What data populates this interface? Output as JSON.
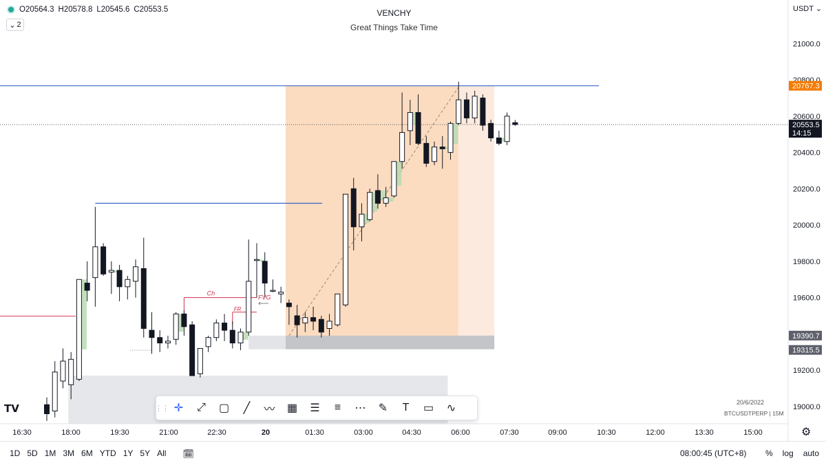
{
  "ohlc": {
    "open": "O20564.3",
    "high": "H20578.8",
    "low": "L20545.6",
    "close": "C20553.5"
  },
  "collapse_label": "2",
  "title": "VENCHY",
  "subtitle": "Great Things Take Time",
  "currency": "USDT",
  "logo_text": "TV",
  "info_date": "20/6/2022",
  "info_symbol": "BTCUSDTPERP | 15M",
  "clock": "08:00:45 (UTC+8)",
  "ranges": [
    "1D",
    "5D",
    "1M",
    "3M",
    "6M",
    "YTD",
    "1Y",
    "5Y",
    "All"
  ],
  "options": {
    "percent": "%",
    "log": "log",
    "auto": "auto"
  },
  "toolbar": [
    "crosshair-icon",
    "trend-line-icon",
    "rectangle-icon",
    "line-icon",
    "path-icon",
    "grid-icon",
    "lines-icon",
    "parallel-channel-icon",
    "channel-icon",
    "brush-icon",
    "text-icon",
    "note-icon",
    "curve-icon"
  ],
  "toolbar_glyphs": [
    "✛",
    "⤢",
    "▢",
    "╱",
    "〰",
    "▦",
    "☰",
    "≡",
    "⋯",
    "✎",
    "T",
    "▭",
    "∿"
  ],
  "colors": {
    "accent": "#2962ff",
    "orange_box": "#fcdcc0",
    "blue_level": "#3a63c7",
    "red_level": "#e0506e"
  },
  "chart_data": {
    "type": "candlestick",
    "title": "VENCHY",
    "subtitle": "Great Things Take Time",
    "y_axis": {
      "ticks": [
        19000,
        19200,
        19400,
        19600,
        19800,
        20000,
        20200,
        20400,
        20600,
        20800,
        21000
      ],
      "labels": [
        "19000.0",
        "19200.0",
        "19400.0",
        "19600.0",
        "19800.0",
        "20000.0",
        "20200.0",
        "20400.0",
        "20600.0",
        "20800.0",
        "21000.0"
      ],
      "range": [
        18905,
        21240
      ]
    },
    "x_axis": {
      "labels": [
        "16:30",
        "18:00",
        "19:30",
        "21:00",
        "22:30",
        "20",
        "01:30",
        "03:00",
        "04:30",
        "06:00",
        "07:30",
        "09:00",
        "10:30",
        "12:00",
        "13:30",
        "15:00"
      ]
    },
    "candles": [
      {
        "o": 19010,
        "h": 19050,
        "l": 18920,
        "c": 18960
      },
      {
        "o": 18975,
        "h": 19250,
        "l": 18940,
        "c": 19190
      },
      {
        "o": 19140,
        "h": 19320,
        "l": 19100,
        "c": 19250
      },
      {
        "o": 19120,
        "h": 19300,
        "l": 19040,
        "c": 19260
      },
      {
        "o": 19150,
        "h": 19700,
        "l": 19140,
        "c": 19700
      },
      {
        "o": 19680,
        "h": 19800,
        "l": 19580,
        "c": 19640
      },
      {
        "o": 19710,
        "h": 20100,
        "l": 19550,
        "c": 19880
      },
      {
        "o": 19880,
        "h": 19900,
        "l": 19720,
        "c": 19730
      },
      {
        "o": 19740,
        "h": 19800,
        "l": 19620,
        "c": 19750
      },
      {
        "o": 19750,
        "h": 19780,
        "l": 19580,
        "c": 19660
      },
      {
        "o": 19660,
        "h": 19720,
        "l": 19590,
        "c": 19700
      },
      {
        "o": 19690,
        "h": 19810,
        "l": 19600,
        "c": 19770
      },
      {
        "o": 19760,
        "h": 19930,
        "l": 19380,
        "c": 19430
      },
      {
        "o": 19420,
        "h": 19520,
        "l": 19290,
        "c": 19380
      },
      {
        "o": 19380,
        "h": 19420,
        "l": 19300,
        "c": 19350
      },
      {
        "o": 19350,
        "h": 19390,
        "l": 19320,
        "c": 19360
      },
      {
        "o": 19370,
        "h": 19520,
        "l": 19340,
        "c": 19510
      },
      {
        "o": 19510,
        "h": 19530,
        "l": 19390,
        "c": 19440
      },
      {
        "o": 19450,
        "h": 19470,
        "l": 19170,
        "c": 19170
      },
      {
        "o": 19180,
        "h": 19320,
        "l": 19160,
        "c": 19320
      },
      {
        "o": 19330,
        "h": 19390,
        "l": 19300,
        "c": 19380
      },
      {
        "o": 19380,
        "h": 19480,
        "l": 19360,
        "c": 19460
      },
      {
        "o": 19460,
        "h": 19510,
        "l": 19360,
        "c": 19420
      },
      {
        "o": 19420,
        "h": 19470,
        "l": 19320,
        "c": 19350
      },
      {
        "o": 19350,
        "h": 19430,
        "l": 19310,
        "c": 19410
      },
      {
        "o": 19410,
        "h": 19920,
        "l": 19390,
        "c": 19690
      },
      {
        "o": 19810,
        "h": 19900,
        "l": 19600,
        "c": 19810
      },
      {
        "o": 19800,
        "h": 19850,
        "l": 19600,
        "c": 19680
      },
      {
        "o": 19640,
        "h": 19700,
        "l": 19630,
        "c": 19640
      },
      {
        "o": 19620,
        "h": 19660,
        "l": 19570,
        "c": 19630
      },
      {
        "o": 19570,
        "h": 19590,
        "l": 19450,
        "c": 19550
      },
      {
        "o": 19500,
        "h": 19560,
        "l": 19380,
        "c": 19450
      },
      {
        "o": 19460,
        "h": 19520,
        "l": 19410,
        "c": 19490
      },
      {
        "o": 19490,
        "h": 19550,
        "l": 19420,
        "c": 19470
      },
      {
        "o": 19480,
        "h": 19500,
        "l": 19380,
        "c": 19410
      },
      {
        "o": 19430,
        "h": 19510,
        "l": 19390,
        "c": 19470
      },
      {
        "o": 19450,
        "h": 19620,
        "l": 19440,
        "c": 19620
      },
      {
        "o": 19560,
        "h": 20170,
        "l": 19550,
        "c": 20170
      },
      {
        "o": 20200,
        "h": 20260,
        "l": 19860,
        "c": 19990
      },
      {
        "o": 19990,
        "h": 20120,
        "l": 19910,
        "c": 20060
      },
      {
        "o": 20030,
        "h": 20200,
        "l": 20020,
        "c": 20180
      },
      {
        "o": 20190,
        "h": 20280,
        "l": 20090,
        "c": 20120
      },
      {
        "o": 20120,
        "h": 20210,
        "l": 20100,
        "c": 20150
      },
      {
        "o": 20160,
        "h": 20350,
        "l": 20150,
        "c": 20350
      },
      {
        "o": 20350,
        "h": 20730,
        "l": 20310,
        "c": 20510
      },
      {
        "o": 20520,
        "h": 20690,
        "l": 20440,
        "c": 20620
      },
      {
        "o": 20620,
        "h": 20720,
        "l": 20440,
        "c": 20450
      },
      {
        "o": 20450,
        "h": 20490,
        "l": 20320,
        "c": 20340
      },
      {
        "o": 20350,
        "h": 20460,
        "l": 20330,
        "c": 20430
      },
      {
        "o": 20430,
        "h": 20490,
        "l": 20310,
        "c": 20420
      },
      {
        "o": 20400,
        "h": 20570,
        "l": 20360,
        "c": 20560
      },
      {
        "o": 20560,
        "h": 20790,
        "l": 20550,
        "c": 20690
      },
      {
        "o": 20690,
        "h": 20730,
        "l": 20560,
        "c": 20590
      },
      {
        "o": 20590,
        "h": 20740,
        "l": 20560,
        "c": 20710
      },
      {
        "o": 20700,
        "h": 20720,
        "l": 20520,
        "c": 20550
      },
      {
        "o": 20560,
        "h": 20580,
        "l": 20460,
        "c": 20480
      },
      {
        "o": 20480,
        "h": 20520,
        "l": 20440,
        "c": 20450
      },
      {
        "o": 20460,
        "h": 20620,
        "l": 20440,
        "c": 20600
      },
      {
        "o": 20564,
        "h": 20579,
        "l": 20546,
        "c": 20554
      }
    ],
    "levels": [
      {
        "price": 20767.3,
        "label": "20767.3",
        "color": "#3a63c7"
      },
      {
        "price": 20120,
        "color": "#3a63c7"
      },
      {
        "price": 19498,
        "color": "#e0506e"
      }
    ],
    "current_price": {
      "price": 20553.5,
      "label": "20553.5",
      "countdown": "14:15"
    },
    "price_badges": [
      {
        "price": 19390.7,
        "label": "19390.7"
      },
      {
        "price": 19315.5,
        "label": "19315.5"
      }
    ],
    "annotations": [
      "Ch",
      "FR",
      "FVG"
    ],
    "marker_arrow": "⟵"
  }
}
